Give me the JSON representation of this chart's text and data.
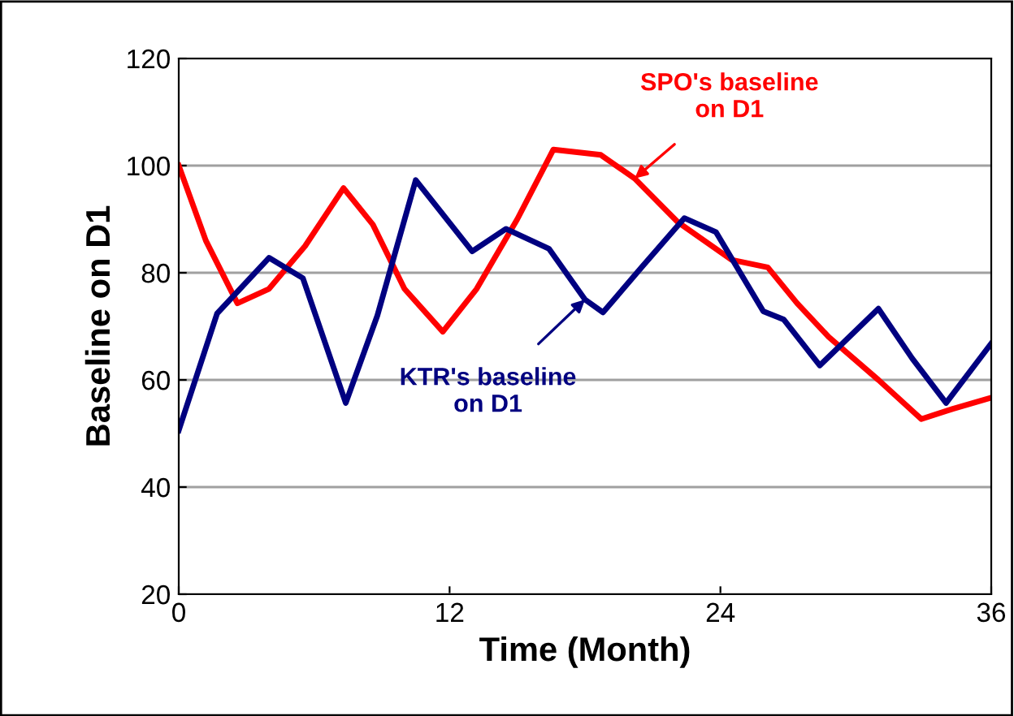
{
  "chart_data": {
    "type": "line",
    "xlabel": "Time (Month)",
    "ylabel": "Baseline on D1",
    "xlim": [
      0,
      36
    ],
    "xticks": [
      0,
      12,
      24,
      36
    ],
    "ylim": [
      20,
      120
    ],
    "yticks": [
      20,
      40,
      60,
      80,
      100,
      120
    ],
    "grid": "y",
    "marker": "none",
    "line_style": "solid",
    "series": [
      {
        "color": "#ff0000",
        "x": [
          0,
          1.2,
          2.6,
          4,
          5.6,
          7.3,
          8.6,
          10,
          11.7,
          13.2,
          15,
          16.6,
          18.7,
          20.2,
          22.1,
          24.5,
          26.1,
          27.4,
          28.8,
          31,
          32.9,
          34.3,
          36
        ],
        "values": [
          100,
          86,
          74.3,
          77,
          85,
          95.8,
          89,
          77,
          69,
          77,
          90,
          103,
          102,
          97.6,
          89.5,
          82.4,
          81,
          74.3,
          68,
          60,
          52.7,
          54.6,
          56.7
        ]
      },
      {
        "color": "#000080",
        "x": [
          0,
          1.7,
          4,
          5.5,
          7.4,
          8.8,
          10.5,
          13,
          14.5,
          16.4,
          18,
          18.8,
          20.5,
          22.4,
          23.8,
          25.9,
          26.8,
          28.4,
          31,
          32.5,
          34,
          36
        ],
        "values": [
          50.6,
          72.4,
          82.8,
          79,
          55.7,
          72,
          97.3,
          84,
          88.2,
          84.5,
          75,
          72.6,
          81,
          90.2,
          87.6,
          72.8,
          71.3,
          62.7,
          73.3,
          64,
          55.7,
          66.8
        ]
      }
    ],
    "annotations": [
      {
        "text": "SPO's baseline\non D1",
        "x": 20.2,
        "y": 97.6
      },
      {
        "text": "KTR's baseline\non D1",
        "x": 18,
        "y": 75
      }
    ]
  }
}
